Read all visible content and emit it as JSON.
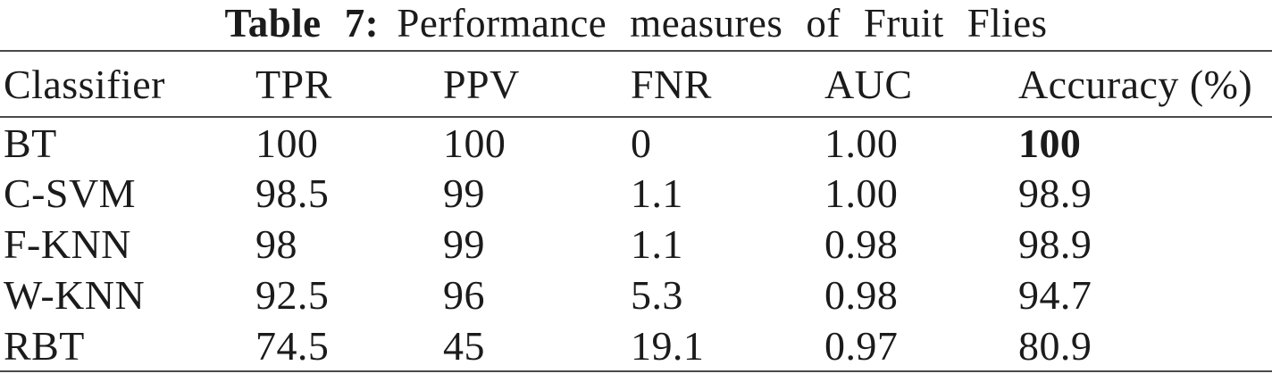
{
  "caption": {
    "label": "Table 7:",
    "text": "Performance measures of Fruit Flies"
  },
  "table": {
    "columns": [
      "Classifier",
      "TPR",
      "PPV",
      "FNR",
      "AUC",
      "Accuracy (%)"
    ],
    "rows": [
      [
        "BT",
        "100",
        "100",
        "0",
        "1.00",
        "100"
      ],
      [
        "C-SVM",
        "98.5",
        "99",
        "1.1",
        "1.00",
        "98.9"
      ],
      [
        "F-KNN",
        "98",
        "99",
        "1.1",
        "0.98",
        "98.9"
      ],
      [
        "W-KNN",
        "92.5",
        "96",
        "5.3",
        "0.98",
        "94.7"
      ],
      [
        "RBT",
        "74.5",
        "45",
        "19.1",
        "0.97",
        "80.9"
      ]
    ],
    "bold_cells": [
      [
        0,
        5
      ]
    ]
  },
  "colors": {
    "text": "#1b1b1b",
    "rule": "#4a4a4a",
    "background": "#ffffff"
  }
}
